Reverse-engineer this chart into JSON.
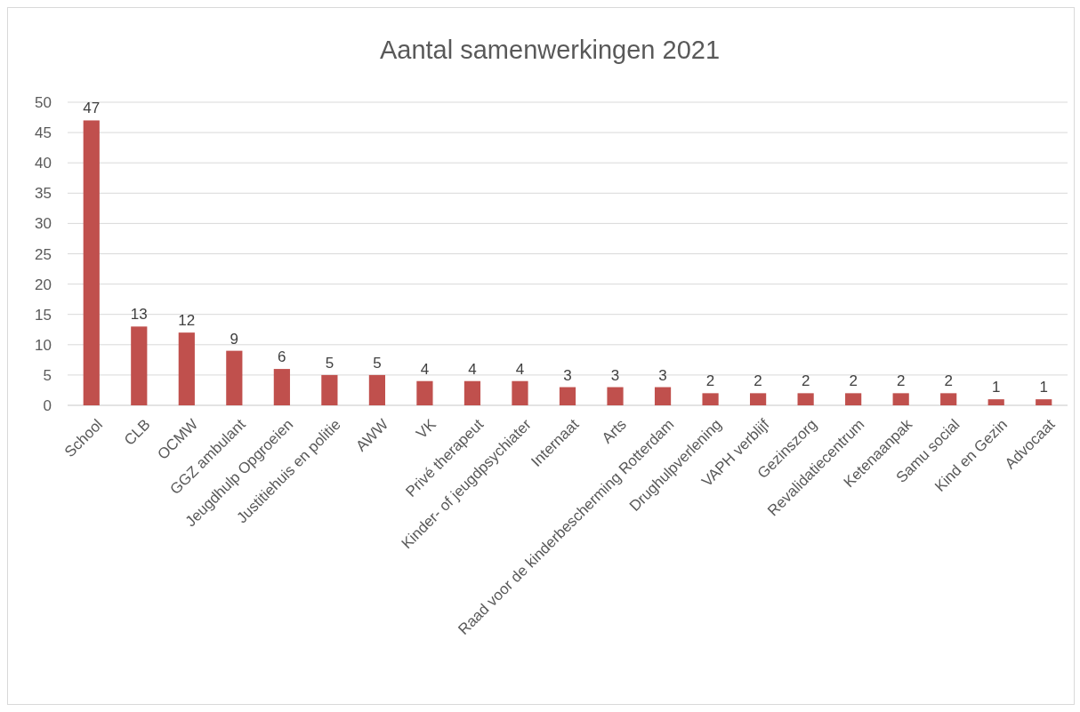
{
  "chart_data": {
    "type": "bar",
    "title": "Aantal samenwerkingen 2021",
    "categories": [
      "School",
      "CLB",
      "OCMW",
      "GGZ ambulant",
      "Jeugdhulp Opgroeien",
      "Justitiehuis en politie",
      "AWW",
      "VK",
      "Privé therapeut",
      "Kinder- of jeugdpsychiater",
      "Internaat",
      "Arts",
      "Raad voor de kinderbescherming Rotterdam",
      "Drughulpverlening",
      "VAPH verblijf",
      "Gezinszorg",
      "Revalidatiecentrum",
      "Ketenaanpak",
      "Samu social",
      "Kind en Gezin",
      "Advocaat"
    ],
    "values": [
      47,
      13,
      12,
      9,
      6,
      5,
      5,
      4,
      4,
      4,
      3,
      3,
      3,
      2,
      2,
      2,
      2,
      2,
      2,
      1,
      1
    ],
    "color": "#c0504d",
    "ylim": [
      0,
      50
    ],
    "yticks": [
      0,
      5,
      10,
      15,
      20,
      25,
      30,
      35,
      40,
      45,
      50
    ],
    "grid": "y",
    "data_labels": true
  }
}
